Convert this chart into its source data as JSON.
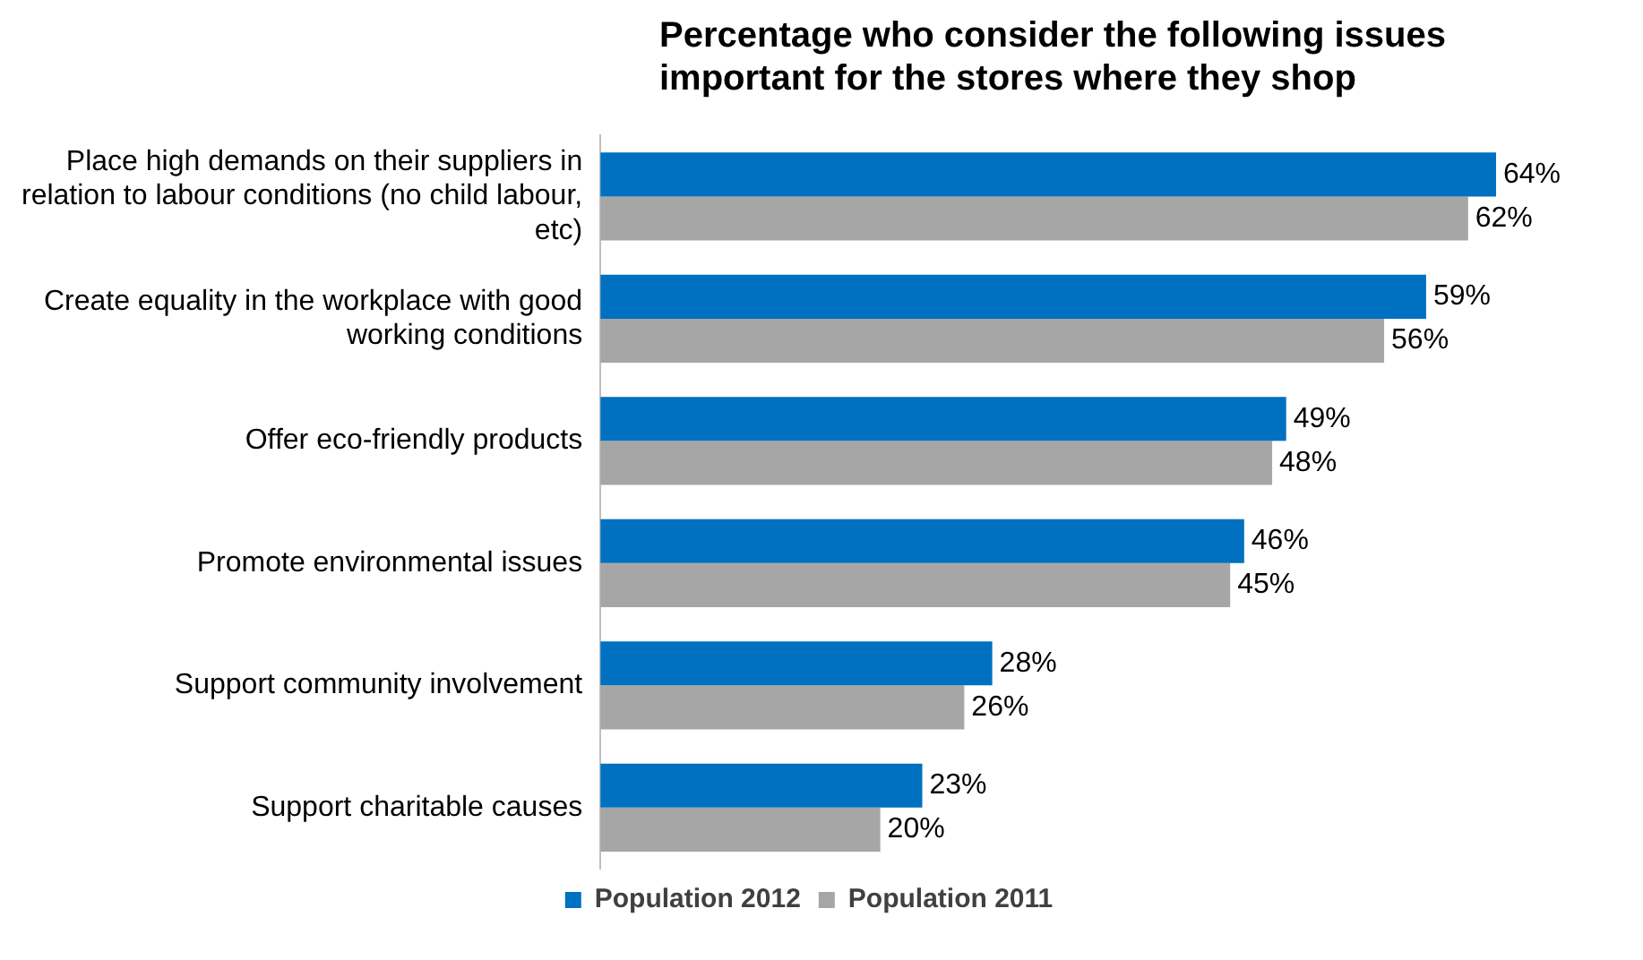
{
  "chart_data": {
    "type": "bar",
    "orientation": "horizontal",
    "title": "Percentage who consider the following issues important for the stores where they shop",
    "categories": [
      "Place high demands on their suppliers in relation to labour conditions (no child labour, etc)",
      "Create equality in the workplace with good working conditions",
      "Offer eco-friendly products",
      "Promote environmental issues",
      "Support community involvement",
      "Support charitable causes"
    ],
    "series": [
      {
        "name": "Population 2012",
        "color": "#0070c0",
        "values": [
          64,
          59,
          49,
          46,
          28,
          23
        ],
        "value_labels": [
          "64%",
          "59%",
          "49%",
          "46%",
          "28%",
          "23%"
        ]
      },
      {
        "name": "Population 2011",
        "color": "#a6a6a6",
        "values": [
          62,
          56,
          48,
          45,
          26,
          20
        ],
        "value_labels": [
          "62%",
          "56%",
          "48%",
          "45%",
          "26%",
          "20%"
        ]
      }
    ],
    "grid": false,
    "legend": "bottom"
  }
}
